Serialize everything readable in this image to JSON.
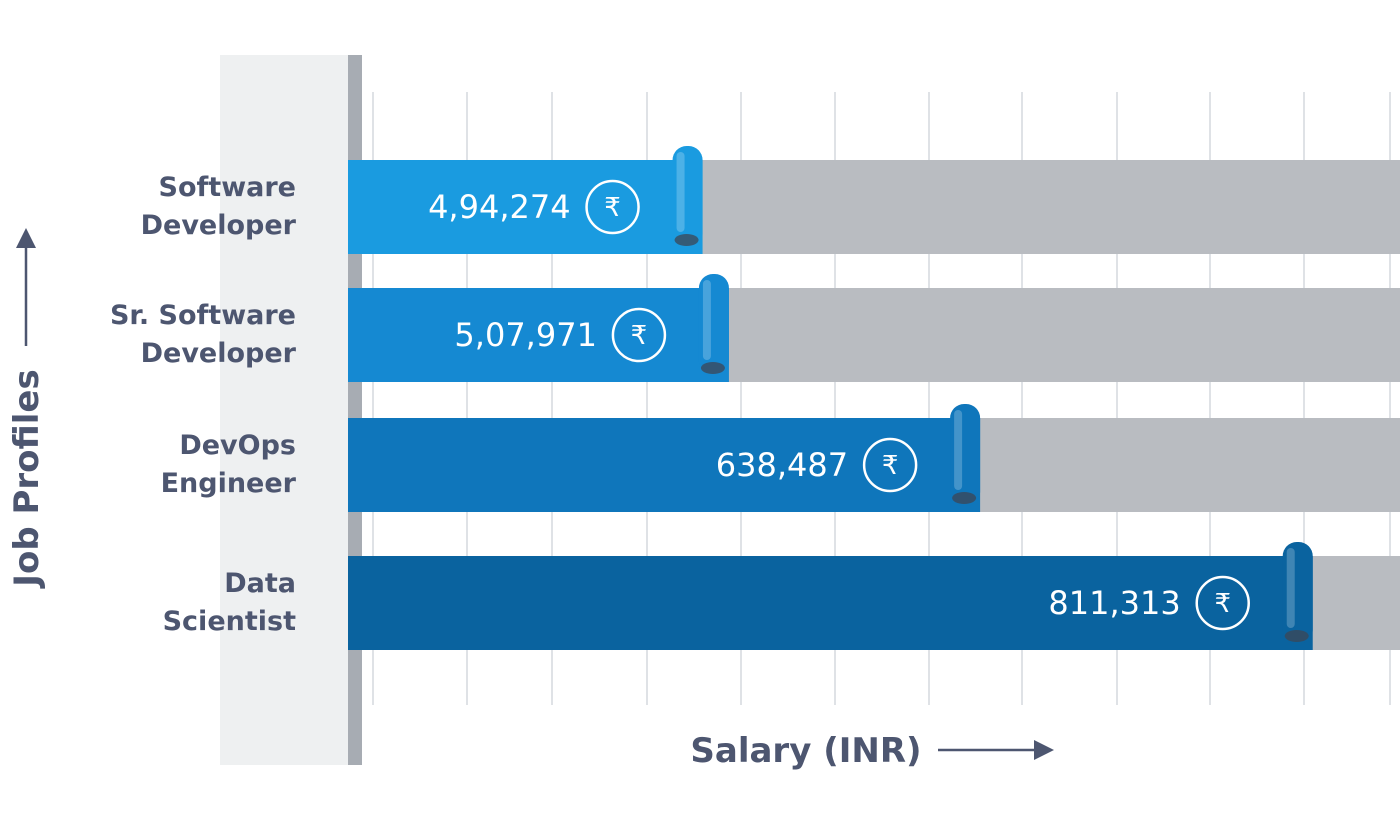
{
  "chart_data": {
    "type": "bar",
    "orientation": "horizontal",
    "categories": [
      "Software Developer",
      "Sr. Software Developer",
      "DevOps Engineer",
      "Data Scientist"
    ],
    "category_label_lines": [
      [
        "Software",
        "Developer"
      ],
      [
        "Sr. Software",
        "Developer"
      ],
      [
        "DevOps",
        "Engineer"
      ],
      [
        "Data",
        "Scientist"
      ]
    ],
    "values": [
      494274,
      507971,
      638487,
      811313
    ],
    "value_labels": [
      "4,94,274",
      "5,07,971",
      "638,487",
      "811,313"
    ],
    "xlabel": "Salary (INR)",
    "ylabel": "Job Profiles",
    "currency_symbol": "₹",
    "grid": true,
    "bar_colors": [
      "#1a9be0",
      "#1589d2",
      "#0f76bb",
      "#0a639f"
    ],
    "track_color": "#b9bcc1",
    "text_color": "#4d5670"
  }
}
